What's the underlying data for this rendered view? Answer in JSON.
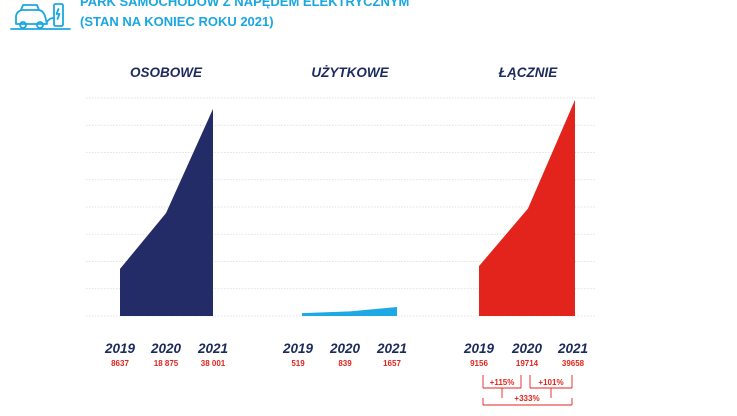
{
  "header": {
    "line1": "PARK SAMOCHODÓW Z NAPĘDEM ELEKTRYCZNYM",
    "line2": "(STAN NA KONIEC ROKU 2021)",
    "icon": "electric-car-charging-icon"
  },
  "colors": {
    "osobowe": "#232c66",
    "uzytkowe": "#1ea9e4",
    "lacznie": "#e3241d",
    "text_dark": "#1c2a5e",
    "text_red": "#e0241f",
    "header": "#1aa7e0",
    "grid": "#d9d9d9"
  },
  "chart_data": {
    "type": "area",
    "years": [
      "2019",
      "2020",
      "2021"
    ],
    "ylim": [
      0,
      40000
    ],
    "grid": true,
    "panels": [
      {
        "key": "osobowe",
        "title": "OSOBOWE",
        "values": [
          8637,
          18875,
          38001
        ],
        "labels": [
          "8637",
          "18 875",
          "38 001"
        ]
      },
      {
        "key": "uzytkowe",
        "title": "UŻYTKOWE",
        "values": [
          519,
          839,
          1657
        ],
        "labels": [
          "519",
          "839",
          "1657"
        ]
      },
      {
        "key": "lacznie",
        "title": "ŁĄCZNIE",
        "values": [
          9156,
          19714,
          39658
        ],
        "labels": [
          "9156",
          "19714",
          "39658"
        ]
      }
    ],
    "growth": {
      "y2019_2020": "+115%",
      "y2020_2021": "+101%",
      "y2019_2021": "+333%"
    }
  }
}
